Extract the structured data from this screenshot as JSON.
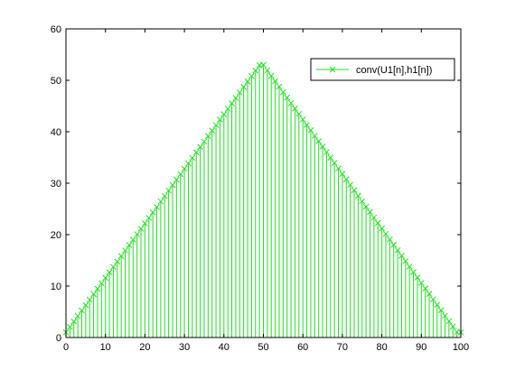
{
  "chart_data": {
    "type": "stem",
    "title": "",
    "xlabel": "",
    "ylabel": "",
    "xlim": [
      0,
      100
    ],
    "ylim": [
      0,
      60
    ],
    "x_ticks": [
      0,
      10,
      20,
      30,
      40,
      50,
      60,
      70,
      80,
      90,
      100
    ],
    "y_ticks": [
      0,
      10,
      20,
      30,
      40,
      50,
      60
    ],
    "x_tick_labels": [
      "0",
      "10",
      "20",
      "30",
      "40",
      "50",
      "60",
      "70",
      "80",
      "90",
      "100"
    ],
    "y_tick_labels": [
      "0",
      "10",
      "20",
      "30",
      "40",
      "50",
      "60"
    ],
    "grid": false,
    "legend_position": "top-right",
    "series": [
      {
        "name": "conv(U1[n],h1[n])",
        "color": "#22dd22",
        "marker": "x",
        "x": [
          0,
          1,
          2,
          3,
          4,
          5,
          6,
          7,
          8,
          9,
          10,
          11,
          12,
          13,
          14,
          15,
          16,
          17,
          18,
          19,
          20,
          21,
          22,
          23,
          24,
          25,
          26,
          27,
          28,
          29,
          30,
          31,
          32,
          33,
          34,
          35,
          36,
          37,
          38,
          39,
          40,
          41,
          42,
          43,
          44,
          45,
          46,
          47,
          48,
          49,
          50,
          51,
          52,
          53,
          54,
          55,
          56,
          57,
          58,
          59,
          60,
          61,
          62,
          63,
          64,
          65,
          66,
          67,
          68,
          69,
          70,
          71,
          72,
          73,
          74,
          75,
          76,
          77,
          78,
          79,
          80,
          81,
          82,
          83,
          84,
          85,
          86,
          87,
          88,
          89,
          90,
          91,
          92,
          93,
          94,
          95,
          96,
          97,
          98,
          99,
          100
        ],
        "values": [
          1,
          2.06,
          3.12,
          4.18,
          5.24,
          6.3,
          7.36,
          8.42,
          9.48,
          10.54,
          11.6,
          12.66,
          13.72,
          14.78,
          15.84,
          16.9,
          17.96,
          19.02,
          20.08,
          21.14,
          22.2,
          23.26,
          24.32,
          25.38,
          26.44,
          27.5,
          28.56,
          29.62,
          30.68,
          31.74,
          32.8,
          33.86,
          34.92,
          35.98,
          37.04,
          38.1,
          39.16,
          40.22,
          41.28,
          42.34,
          43.4,
          44.46,
          45.52,
          46.58,
          47.64,
          48.7,
          49.76,
          50.82,
          51.88,
          52.94,
          53,
          51.94,
          50.88,
          49.82,
          48.76,
          47.7,
          46.64,
          45.58,
          44.52,
          43.46,
          42.4,
          41.34,
          40.28,
          39.22,
          38.16,
          37.1,
          36.04,
          34.98,
          33.92,
          32.86,
          31.8,
          30.74,
          29.68,
          28.62,
          27.56,
          26.5,
          25.44,
          24.38,
          23.32,
          22.26,
          21.2,
          20.14,
          19.08,
          18.02,
          16.96,
          15.9,
          14.84,
          13.78,
          12.72,
          11.66,
          10.6,
          9.54,
          8.48,
          7.42,
          6.36,
          5.3,
          4.24,
          3.18,
          2.12,
          1.06,
          1
        ]
      }
    ]
  }
}
